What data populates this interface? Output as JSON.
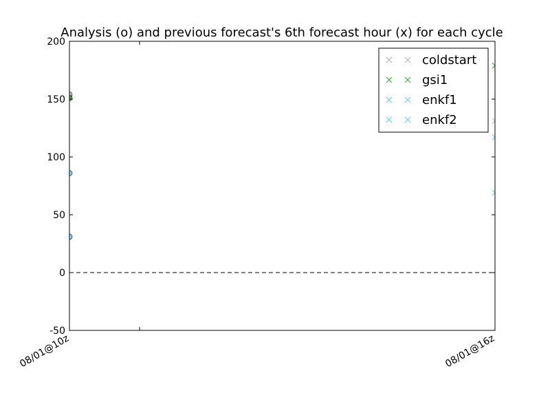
{
  "chart_data": {
    "type": "scatter",
    "title": "Analysis (o) and previous forecast's 6th forecast hour (x) for each cycle",
    "xlabel": "",
    "ylabel": "",
    "ylim": [
      -50,
      200
    ],
    "yticks": [
      "-50",
      "0",
      "50",
      "100",
      "150",
      "200"
    ],
    "x_categories": [
      "08/01@10z",
      "08/01@16z"
    ],
    "reference_line_y": 0,
    "grid": false,
    "legend_position": "top-right",
    "series": [
      {
        "name": "coldstart",
        "color": "#b0b0b0",
        "analysis": [
          {
            "x": "08/01@10z",
            "y": 154
          }
        ],
        "forecast": [
          {
            "x": "08/01@16z",
            "y": 131
          }
        ]
      },
      {
        "name": "gsi1",
        "color": "#2ca02c",
        "analysis": [
          {
            "x": "08/01@10z",
            "y": 151
          }
        ],
        "forecast": [
          {
            "x": "08/01@16z",
            "y": 179
          }
        ]
      },
      {
        "name": "enkf1",
        "color": "#5bc8ef",
        "analysis": [
          {
            "x": "08/01@10z",
            "y": 86
          }
        ],
        "forecast": [
          {
            "x": "08/01@16z",
            "y": 117
          }
        ]
      },
      {
        "name": "enkf2",
        "color": "#5bc8ef",
        "analysis": [
          {
            "x": "08/01@10z",
            "y": 31
          }
        ],
        "forecast": [
          {
            "x": "08/01@16z",
            "y": 69
          }
        ]
      }
    ]
  }
}
